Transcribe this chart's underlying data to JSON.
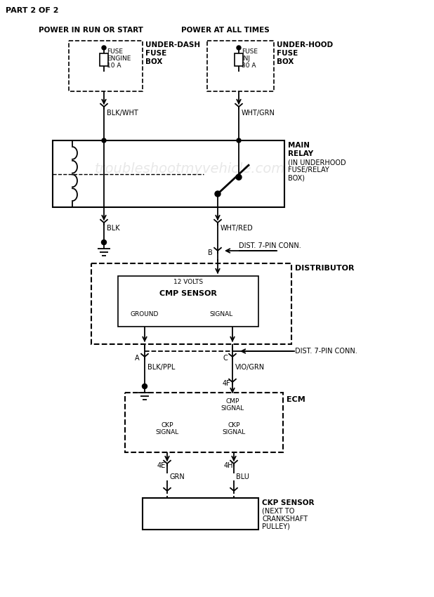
{
  "title": "PART 2 OF 2",
  "bg_color": "#ffffff",
  "line_color": "#000000",
  "watermark": "troubleshootmyvehicle.com",
  "components": {
    "power_run_label": "POWER IN RUN OR START",
    "power_all_label": "POWER AT ALL TIMES",
    "fuse_left_label1": "FUSE",
    "fuse_left_label2": "ENGINE",
    "fuse_left_label3": "10 A",
    "fuse_box_left1": "UNDER-DASH",
    "fuse_box_left2": "FUSE",
    "fuse_box_left3": "BOX",
    "fuse_right_label1": "FUSE",
    "fuse_right_label2": "INJ",
    "fuse_right_label3": "30 A",
    "fuse_box_right1": "UNDER-HOOD",
    "fuse_box_right2": "FUSE",
    "fuse_box_right3": "BOX",
    "wire_blk_wht": "BLK/WHT",
    "wire_wht_grn": "WHT/GRN",
    "main_relay1": "MAIN",
    "main_relay2": "RELAY",
    "main_relay3": "(IN UNDERHOOD",
    "main_relay4": "FUSE/RELAY",
    "main_relay5": "BOX)",
    "wire_blk": "BLK",
    "wire_wht_red": "WHT/RED",
    "dist_7pin_1": "DIST. 7-PIN CONN.",
    "connector_b": "B",
    "distributor_label": "DISTRIBUTOR",
    "cmp_12v": "12 VOLTS",
    "cmp_sensor": "CMP SENSOR",
    "cmp_ground": "GROUND",
    "cmp_signal": "SIGNAL",
    "dist_7pin_2": "DIST. 7-PIN CONN.",
    "connector_a": "A",
    "connector_c": "C",
    "wire_blk_ppl": "BLK/PPL",
    "wire_vio_grn": "VIO/GRN",
    "connector_4f": "4F",
    "ecm_label": "ECM",
    "ecm_cmp_signal": "CMP\nSIGNAL",
    "ecm_ckp_left": "CKP\nSIGNAL",
    "ecm_ckp_right": "CKP\nSIGNAL",
    "connector_4e": "4E",
    "connector_4h": "4H",
    "wire_grn": "GRN",
    "wire_blu": "BLU",
    "ckp_sensor1": "CKP SENSOR",
    "ckp_sensor2": "(NEXT TO",
    "ckp_sensor3": "CRANKSHAFT",
    "ckp_sensor4": "PULLEY)"
  }
}
